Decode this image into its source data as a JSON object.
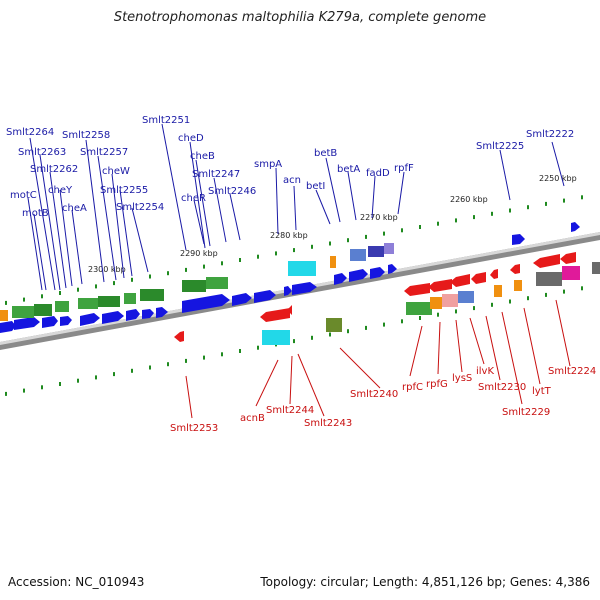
{
  "title": "Stenotrophomonas maltophilia K279a, complete genome",
  "footer": {
    "accession": "Accession: NC_010943",
    "topology": "Topology: circular; Length: 4,851,126 bp; Genes: 4,386"
  },
  "colors": {
    "forward_cds": "#1515e0",
    "reverse_cds": "#e61a1a",
    "label_top": "#1a1aa6",
    "label_bottom": "#c81010",
    "tick": "#1f8a1f",
    "backbone": "#8a8a8a"
  },
  "kbp_marks": [
    "2250 kbp",
    "2260 kbp",
    "2270 kbp",
    "2280 kbp",
    "2290 kbp",
    "2300 kbp"
  ],
  "top_labels": [
    "Smlt2264",
    "Smlt2263",
    "Smlt2262",
    "motC",
    "motB",
    "cheY",
    "cheA",
    "Smlt2258",
    "Smlt2257",
    "cheW",
    "Smlt2255",
    "Smlt2254",
    "Smlt2251",
    "cheD",
    "cheB",
    "cheR",
    "Smlt2247",
    "Smlt2246",
    "smpA",
    "acn",
    "betB",
    "betI",
    "betA",
    "fadD",
    "rpfF",
    "Smlt2225",
    "Smlt2222"
  ],
  "bottom_labels": [
    "Smlt2253",
    "acnB",
    "Smlt2244",
    "Smlt2243",
    "Smlt2240",
    "rpfC",
    "rpfG",
    "lysS",
    "ilvK",
    "Smlt2230",
    "Smlt2229",
    "lytT",
    "Smlt2224"
  ]
}
